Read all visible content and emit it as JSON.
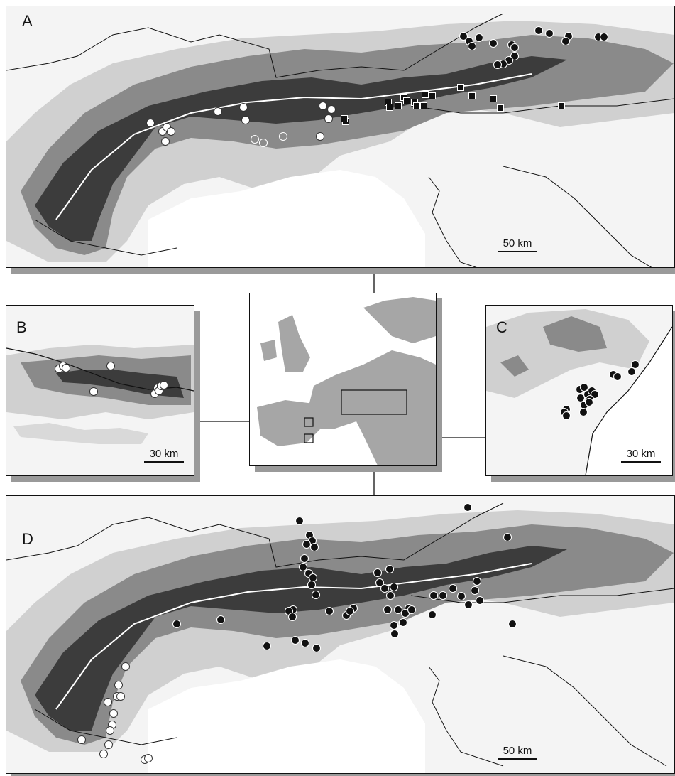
{
  "panels": {
    "a": {
      "label": "A",
      "scale_label": "50 km"
    },
    "b": {
      "label": "B",
      "scale_label": "30 km"
    },
    "c": {
      "label": "C",
      "scale_label": "30 km"
    },
    "d": {
      "label": "D",
      "scale_label": "50 km"
    }
  },
  "legend_symbols": {
    "white": "white-circle",
    "grey": "grey-circle",
    "black": "black-circle",
    "square": "black-square"
  },
  "colors": {
    "land_low": "#f4f4f4",
    "relief_light": "#d0d0d0",
    "relief_mid": "#8a8a8a",
    "relief_dark": "#3c3c3c",
    "inset_land": "#a6a6a6",
    "grey_marker": "#8c8c8c"
  }
}
